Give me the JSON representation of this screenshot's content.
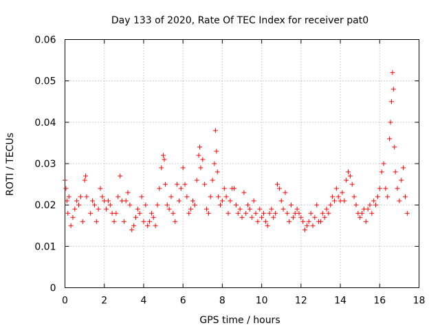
{
  "chart_data": {
    "type": "scatter",
    "title": "Day 133 of 2020, Rate Of TEC Index for receiver pat0",
    "xlabel": "GPS time / hours",
    "ylabel": "ROTI / TECUs",
    "xlim": [
      0,
      18
    ],
    "ylim": [
      0,
      0.06
    ],
    "grid": true,
    "marker": "+",
    "color": "#ff0000",
    "x_ticks": [
      0,
      2,
      4,
      6,
      8,
      10,
      12,
      14,
      16,
      18
    ],
    "x_tick_labels": [
      "0",
      "2",
      "4",
      "6",
      "8",
      "10",
      "12",
      "14",
      "16",
      "18"
    ],
    "y_ticks": [
      0,
      0.01,
      0.02,
      0.03,
      0.04,
      0.05,
      0.06
    ],
    "y_tick_labels": [
      "0",
      "0.01",
      "0.02",
      "0.03",
      "0.04",
      "0.05",
      "0.06"
    ],
    "series": [
      {
        "name": "ROTI",
        "points": [
          [
            0.0,
            0.026
          ],
          [
            0.05,
            0.024
          ],
          [
            0.1,
            0.021
          ],
          [
            0.15,
            0.018
          ],
          [
            0.2,
            0.022
          ],
          [
            0.3,
            0.015
          ],
          [
            0.4,
            0.017
          ],
          [
            0.5,
            0.019
          ],
          [
            0.6,
            0.021
          ],
          [
            0.7,
            0.02
          ],
          [
            0.8,
            0.022
          ],
          [
            0.9,
            0.016
          ],
          [
            1.0,
            0.026
          ],
          [
            1.05,
            0.027
          ],
          [
            1.1,
            0.022
          ],
          [
            1.3,
            0.018
          ],
          [
            1.4,
            0.021
          ],
          [
            1.5,
            0.02
          ],
          [
            1.6,
            0.016
          ],
          [
            1.7,
            0.019
          ],
          [
            1.8,
            0.024
          ],
          [
            1.9,
            0.022
          ],
          [
            2.0,
            0.021
          ],
          [
            2.1,
            0.019
          ],
          [
            2.2,
            0.021
          ],
          [
            2.3,
            0.02
          ],
          [
            2.4,
            0.018
          ],
          [
            2.5,
            0.016
          ],
          [
            2.6,
            0.018
          ],
          [
            2.7,
            0.022
          ],
          [
            2.8,
            0.027
          ],
          [
            2.9,
            0.021
          ],
          [
            3.0,
            0.016
          ],
          [
            3.1,
            0.021
          ],
          [
            3.2,
            0.023
          ],
          [
            3.3,
            0.02
          ],
          [
            3.4,
            0.014
          ],
          [
            3.5,
            0.015
          ],
          [
            3.6,
            0.017
          ],
          [
            3.7,
            0.019
          ],
          [
            3.8,
            0.018
          ],
          [
            3.9,
            0.022
          ],
          [
            4.0,
            0.016
          ],
          [
            4.1,
            0.02
          ],
          [
            4.2,
            0.015
          ],
          [
            4.3,
            0.016
          ],
          [
            4.4,
            0.018
          ],
          [
            4.5,
            0.017
          ],
          [
            4.6,
            0.015
          ],
          [
            4.7,
            0.02
          ],
          [
            4.8,
            0.024
          ],
          [
            4.9,
            0.029
          ],
          [
            5.0,
            0.032
          ],
          [
            5.05,
            0.031
          ],
          [
            5.1,
            0.025
          ],
          [
            5.2,
            0.02
          ],
          [
            5.3,
            0.019
          ],
          [
            5.4,
            0.022
          ],
          [
            5.5,
            0.018
          ],
          [
            5.6,
            0.016
          ],
          [
            5.7,
            0.025
          ],
          [
            5.8,
            0.021
          ],
          [
            5.9,
            0.024
          ],
          [
            6.0,
            0.029
          ],
          [
            6.1,
            0.025
          ],
          [
            6.2,
            0.022
          ],
          [
            6.3,
            0.018
          ],
          [
            6.4,
            0.019
          ],
          [
            6.5,
            0.021
          ],
          [
            6.6,
            0.02
          ],
          [
            6.7,
            0.026
          ],
          [
            6.8,
            0.032
          ],
          [
            6.85,
            0.034
          ],
          [
            6.9,
            0.029
          ],
          [
            7.0,
            0.031
          ],
          [
            7.1,
            0.025
          ],
          [
            7.2,
            0.019
          ],
          [
            7.3,
            0.018
          ],
          [
            7.4,
            0.022
          ],
          [
            7.5,
            0.026
          ],
          [
            7.6,
            0.03
          ],
          [
            7.65,
            0.038
          ],
          [
            7.7,
            0.033
          ],
          [
            7.75,
            0.028
          ],
          [
            7.8,
            0.022
          ],
          [
            7.9,
            0.02
          ],
          [
            8.0,
            0.021
          ],
          [
            8.1,
            0.024
          ],
          [
            8.2,
            0.022
          ],
          [
            8.3,
            0.018
          ],
          [
            8.4,
            0.021
          ],
          [
            8.5,
            0.024
          ],
          [
            8.6,
            0.024
          ],
          [
            8.7,
            0.02
          ],
          [
            8.8,
            0.018
          ],
          [
            8.9,
            0.019
          ],
          [
            9.0,
            0.017
          ],
          [
            9.1,
            0.023
          ],
          [
            9.2,
            0.018
          ],
          [
            9.3,
            0.02
          ],
          [
            9.4,
            0.019
          ],
          [
            9.5,
            0.017
          ],
          [
            9.6,
            0.021
          ],
          [
            9.7,
            0.018
          ],
          [
            9.8,
            0.016
          ],
          [
            9.9,
            0.019
          ],
          [
            10.0,
            0.017
          ],
          [
            10.1,
            0.018
          ],
          [
            10.2,
            0.016
          ],
          [
            10.3,
            0.015
          ],
          [
            10.4,
            0.018
          ],
          [
            10.5,
            0.019
          ],
          [
            10.6,
            0.017
          ],
          [
            10.7,
            0.018
          ],
          [
            10.8,
            0.025
          ],
          [
            10.9,
            0.024
          ],
          [
            11.0,
            0.021
          ],
          [
            11.1,
            0.019
          ],
          [
            11.2,
            0.023
          ],
          [
            11.3,
            0.018
          ],
          [
            11.4,
            0.016
          ],
          [
            11.5,
            0.02
          ],
          [
            11.6,
            0.017
          ],
          [
            11.7,
            0.018
          ],
          [
            11.8,
            0.019
          ],
          [
            11.9,
            0.018
          ],
          [
            12.0,
            0.017
          ],
          [
            12.1,
            0.016
          ],
          [
            12.2,
            0.014
          ],
          [
            12.3,
            0.015
          ],
          [
            12.4,
            0.016
          ],
          [
            12.5,
            0.018
          ],
          [
            12.6,
            0.015
          ],
          [
            12.7,
            0.017
          ],
          [
            12.8,
            0.02
          ],
          [
            12.9,
            0.016
          ],
          [
            13.0,
            0.016
          ],
          [
            13.1,
            0.018
          ],
          [
            13.2,
            0.017
          ],
          [
            13.3,
            0.019
          ],
          [
            13.4,
            0.018
          ],
          [
            13.5,
            0.02
          ],
          [
            13.6,
            0.022
          ],
          [
            13.7,
            0.021
          ],
          [
            13.8,
            0.024
          ],
          [
            13.9,
            0.022
          ],
          [
            14.0,
            0.021
          ],
          [
            14.1,
            0.023
          ],
          [
            14.2,
            0.021
          ],
          [
            14.3,
            0.026
          ],
          [
            14.4,
            0.028
          ],
          [
            14.5,
            0.027
          ],
          [
            14.6,
            0.025
          ],
          [
            14.7,
            0.022
          ],
          [
            14.8,
            0.02
          ],
          [
            14.9,
            0.018
          ],
          [
            15.0,
            0.017
          ],
          [
            15.1,
            0.018
          ],
          [
            15.2,
            0.019
          ],
          [
            15.3,
            0.016
          ],
          [
            15.4,
            0.019
          ],
          [
            15.5,
            0.02
          ],
          [
            15.6,
            0.018
          ],
          [
            15.7,
            0.021
          ],
          [
            15.8,
            0.02
          ],
          [
            15.9,
            0.022
          ],
          [
            16.0,
            0.024
          ],
          [
            16.1,
            0.028
          ],
          [
            16.2,
            0.03
          ],
          [
            16.3,
            0.024
          ],
          [
            16.4,
            0.022
          ],
          [
            16.5,
            0.036
          ],
          [
            16.55,
            0.04
          ],
          [
            16.6,
            0.045
          ],
          [
            16.65,
            0.052
          ],
          [
            16.7,
            0.048
          ],
          [
            16.75,
            0.034
          ],
          [
            16.8,
            0.028
          ],
          [
            16.9,
            0.024
          ],
          [
            17.0,
            0.021
          ],
          [
            17.1,
            0.026
          ],
          [
            17.2,
            0.029
          ],
          [
            17.3,
            0.022
          ],
          [
            17.4,
            0.018
          ]
        ]
      }
    ]
  }
}
